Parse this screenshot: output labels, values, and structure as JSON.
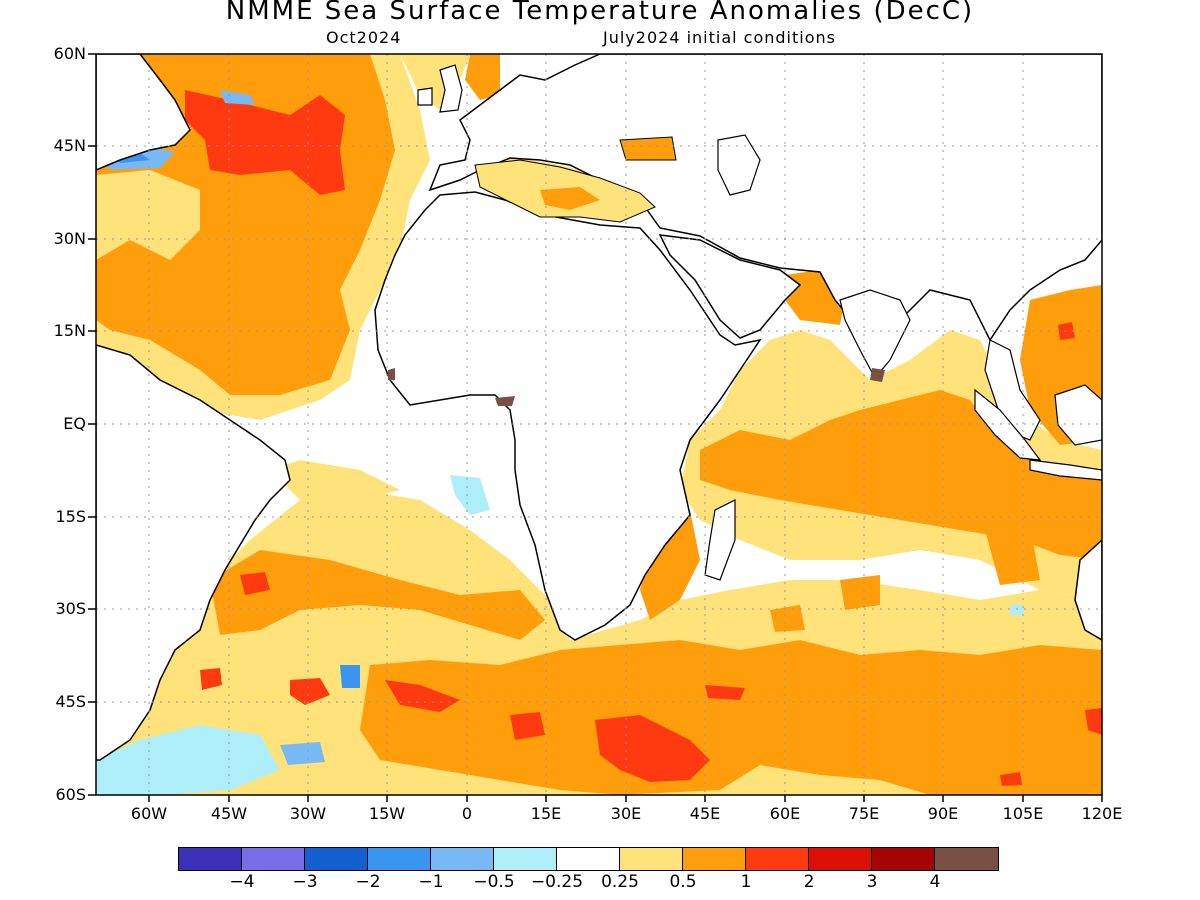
{
  "title": "NMME Sea Surface Temperature Anomalies (DecC)",
  "valid_month": "Oct2024",
  "init_conditions": "July2024 initial conditions",
  "lat_ticks": [
    "60N",
    "45N",
    "30N",
    "15N",
    "EQ",
    "15S",
    "30S",
    "45S",
    "60S"
  ],
  "lon_ticks": [
    "60W",
    "45W",
    "30W",
    "15W",
    "0",
    "15E",
    "30E",
    "45E",
    "60E",
    "75E",
    "90E",
    "105E",
    "120E"
  ],
  "colorbar": {
    "colors": [
      "#3c2fb8",
      "#7a6ee8",
      "#1560d0",
      "#3a95f0",
      "#78b8f5",
      "#aeeef8",
      "#ffffff",
      "#ffe27a",
      "#ff9e0a",
      "#ff3a10",
      "#dd1008",
      "#a50505",
      "#7a5044"
    ],
    "labels": [
      "−4",
      "−3",
      "−2",
      "−1",
      "−0.5",
      "−0.25",
      "0.25",
      "0.5",
      "1",
      "2",
      "3",
      "4"
    ]
  }
}
